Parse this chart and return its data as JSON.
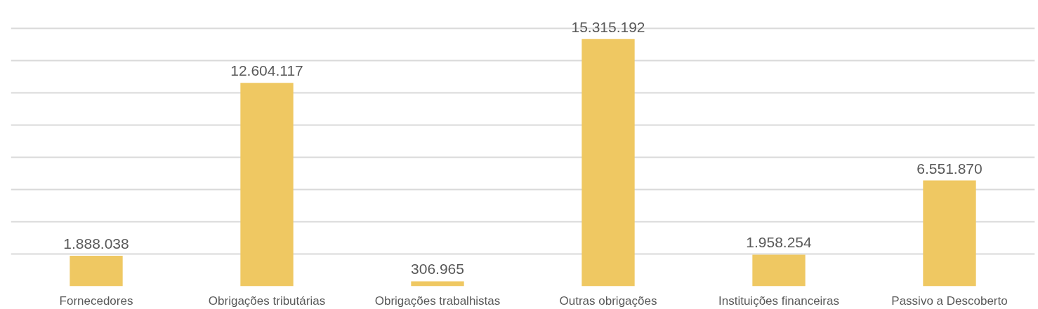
{
  "chart_data": {
    "type": "bar",
    "categories": [
      "Fornecedores",
      "Obrigações tributárias",
      "Obrigações trabalhistas",
      "Outras obrigações",
      "Instituições financeiras",
      "Passivo a Descoberto"
    ],
    "values": [
      1888038,
      12604117,
      306965,
      15315192,
      1958254,
      6551870
    ],
    "value_labels": [
      "1.888.038",
      "12.604.117",
      "306.965",
      "15.315.192",
      "1.958.254",
      "6.551.870"
    ],
    "color": "#efc862",
    "grid": "y",
    "tick_labels": "x"
  }
}
